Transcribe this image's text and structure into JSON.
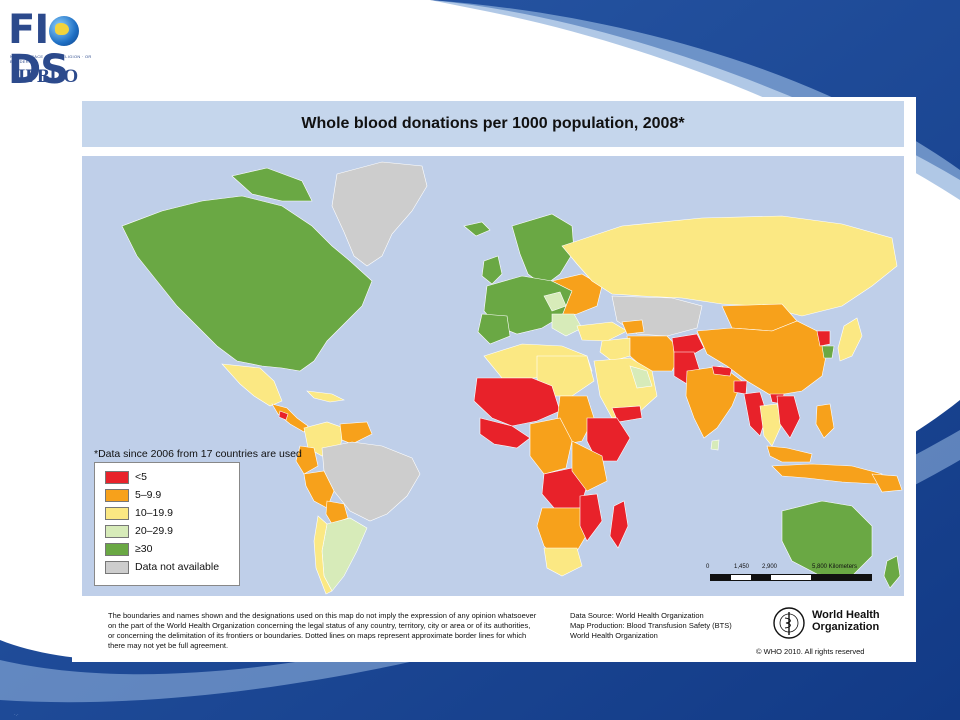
{
  "slide": {
    "logo": {
      "main_left": "FI",
      "main_right": "DS",
      "tagline": "NEITHER RACE · NOR RELIGION · OR BORDERS",
      "subtitle": "IFBDO",
      "globe_icon": "globe-icon"
    },
    "corner_mark": "·.·"
  },
  "map": {
    "title": "Whole blood donations per 1000 population, 2008*",
    "note": "*Data since 2006 from 17 countries are used",
    "legend": [
      {
        "label": "<5",
        "color": "#e8222a"
      },
      {
        "label": "5–9.9",
        "color": "#f7a11b"
      },
      {
        "label": "10–19.9",
        "color": "#fbe883"
      },
      {
        "label": "20–29.9",
        "color": "#d7ebb9"
      },
      {
        "label": "≥30",
        "color": "#6aa844"
      },
      {
        "label": "Data not available",
        "color": "#cdcdcd"
      }
    ],
    "scale": {
      "ticks": [
        "0",
        "1,450",
        "2,900",
        "5,800 Kilometers"
      ]
    },
    "ocean_color": "#bfcfe9",
    "border_color": "#ffffff"
  },
  "footer": {
    "disclaimer": [
      "The boundaries and names shown and the designations used on this map do not imply the expression of any opinion whatsoever",
      "on the part of the World Health Organization concerning the legal status of any country, territory, city or area or of its authorities,",
      "or concerning the delimitation of its frontiers or boundaries. Dotted lines on maps represent approximate border lines for which",
      "there may not yet be full agreement."
    ],
    "source": [
      "Data Source: World Health Organization",
      "Map Production: Blood Transfusion Safety (BTS)",
      "World Health Organization"
    ],
    "org_name_line1": "World Health",
    "org_name_line2": "Organization",
    "copyright": "© WHO 2010. All rights reserved",
    "emblem_icon": "who-emblem-icon"
  }
}
